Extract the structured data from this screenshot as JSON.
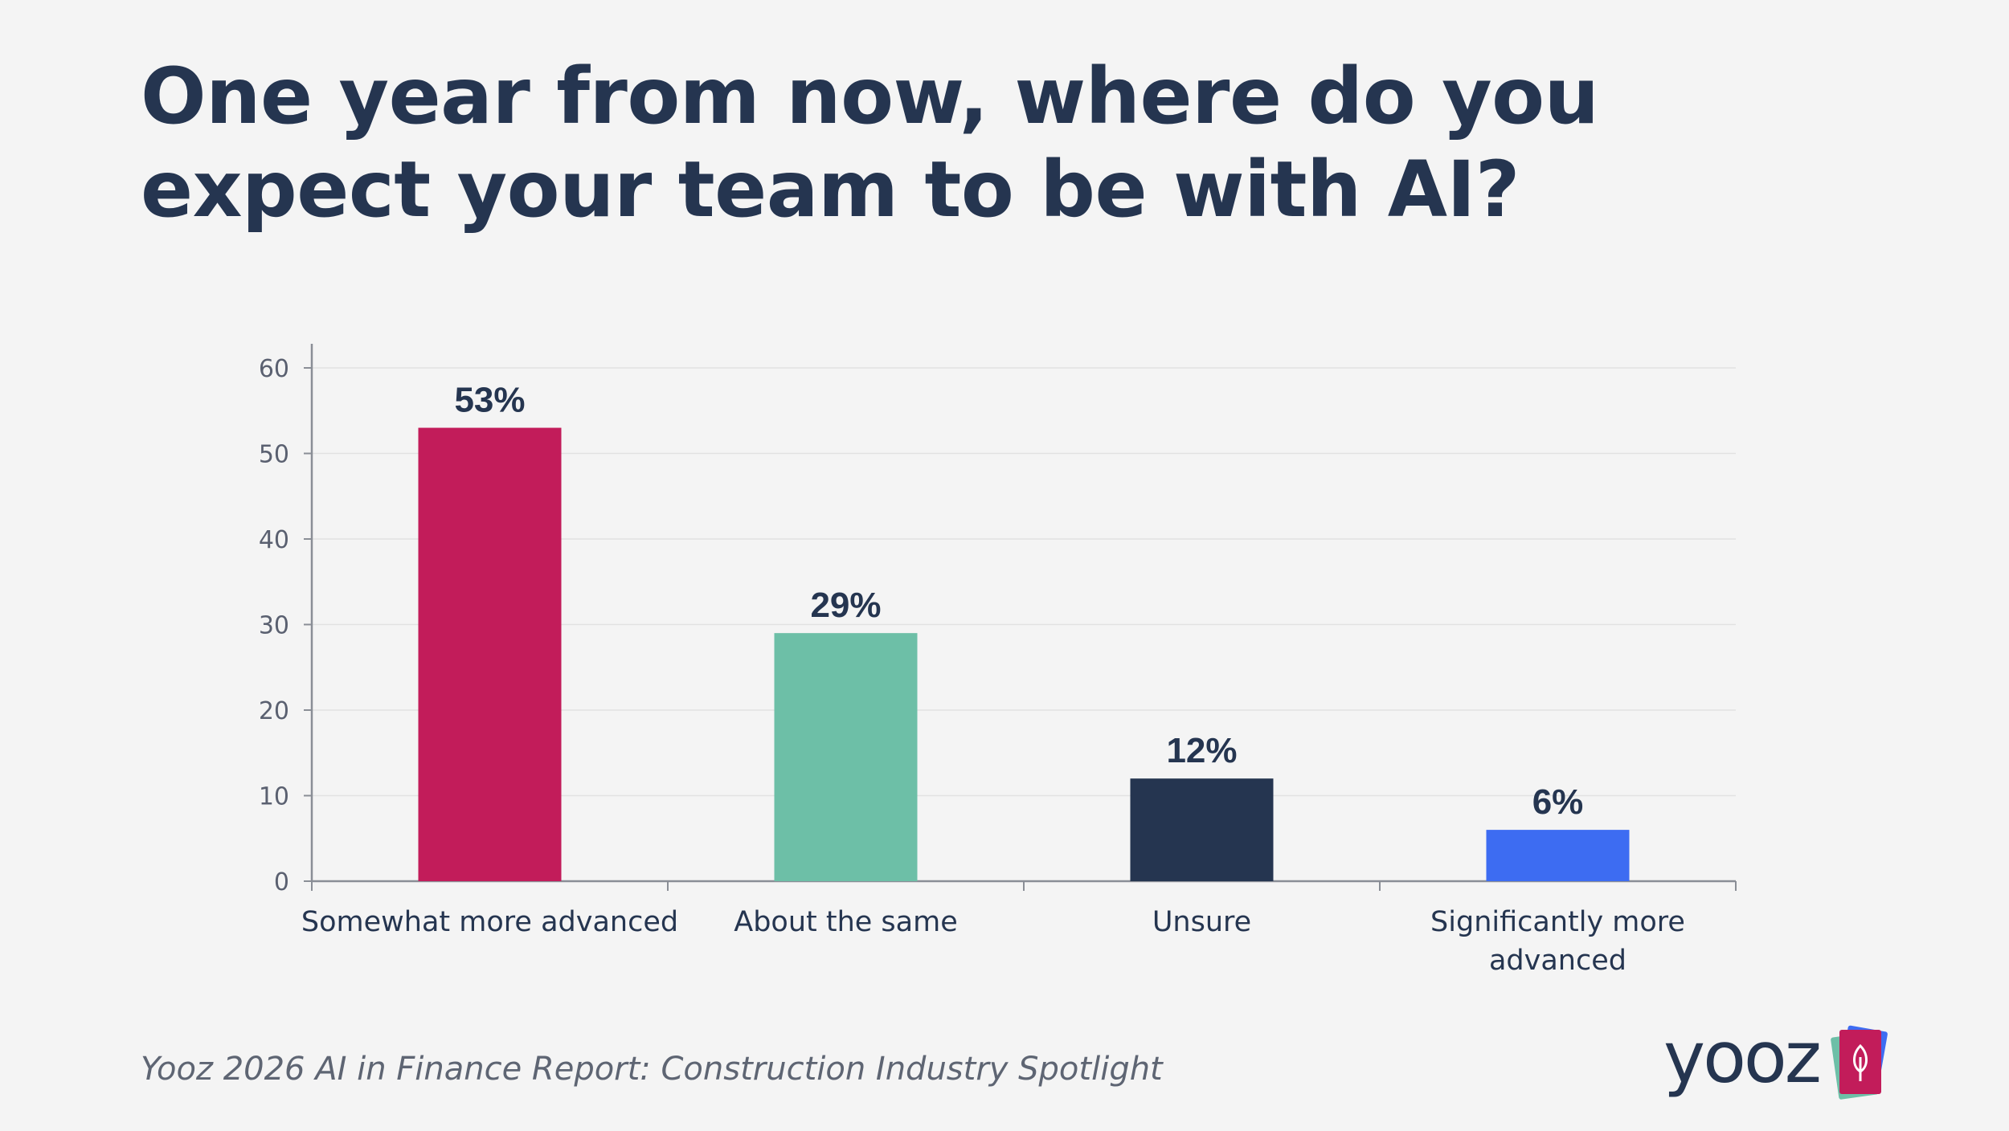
{
  "title": "One year from now, where do you expect your team to be with AI?",
  "footer": {
    "source": "Yooz 2026 AI in Finance Report: Construction Industry Spotlight",
    "logo_text": "yooz"
  },
  "colors": {
    "title": "#253550",
    "bars": [
      "#c21c5a",
      "#6dbfa7",
      "#253550",
      "#3d6cf2"
    ]
  },
  "chart_data": {
    "type": "bar",
    "title": "One year from now, where do you expect your team to be with AI?",
    "xlabel": "",
    "ylabel": "",
    "categories": [
      [
        "Somewhat more advanced"
      ],
      [
        "About the same"
      ],
      [
        "Unsure"
      ],
      [
        "Significantly more",
        "advanced"
      ]
    ],
    "values": [
      53,
      29,
      12,
      6
    ],
    "data_labels": [
      "53%",
      "29%",
      "12%",
      "6%"
    ],
    "ylim": [
      0,
      60
    ],
    "yticks": [
      0,
      10,
      20,
      30,
      40,
      50,
      60
    ],
    "grid": true,
    "legend": "none"
  }
}
